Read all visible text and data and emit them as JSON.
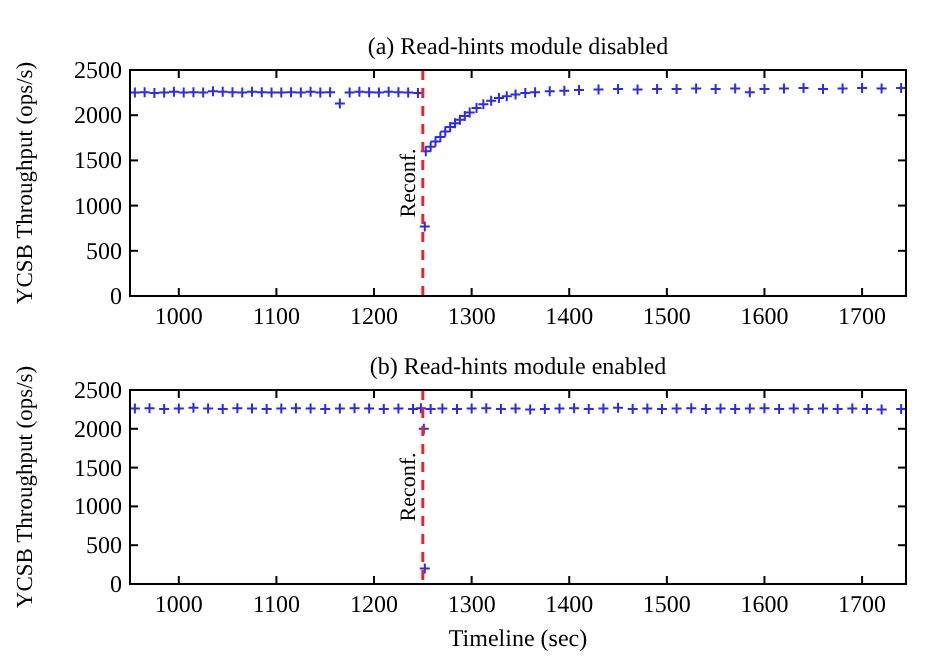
{
  "chart_data": [
    {
      "type": "scatter",
      "title": "(a) Read-hints module disabled",
      "ylabel": "YCSB Throughput (ops/s)",
      "marker": "cross",
      "grid": false,
      "xlim": [
        950,
        1745
      ],
      "ylim": [
        0,
        2500
      ],
      "xticks": [
        1000,
        1100,
        1200,
        1300,
        1400,
        1500,
        1600,
        1700
      ],
      "yticks": [
        0,
        500,
        1000,
        1500,
        2000,
        2500
      ],
      "ref_lines": [
        {
          "axis": "x",
          "value": 1250,
          "label": "Reconf.",
          "color": "#e8262a",
          "line_style": "dashed"
        }
      ],
      "series": [
        {
          "color": "#2b2bf0",
          "x": [
            955,
            965,
            975,
            985,
            995,
            1005,
            1015,
            1025,
            1035,
            1045,
            1055,
            1065,
            1075,
            1085,
            1095,
            1105,
            1115,
            1125,
            1135,
            1145,
            1155,
            1165,
            1175,
            1185,
            1195,
            1205,
            1215,
            1225,
            1235,
            1245,
            1252,
            1253,
            1258,
            1263,
            1268,
            1273,
            1278,
            1283,
            1288,
            1293,
            1298,
            1305,
            1312,
            1320,
            1328,
            1336,
            1345,
            1355,
            1365,
            1380,
            1395,
            1410,
            1430,
            1450,
            1470,
            1490,
            1510,
            1530,
            1550,
            1570,
            1585,
            1600,
            1620,
            1640,
            1660,
            1680,
            1700,
            1720,
            1740
          ],
          "values": [
            2250,
            2255,
            2245,
            2250,
            2260,
            2250,
            2255,
            2250,
            2265,
            2260,
            2255,
            2250,
            2260,
            2255,
            2250,
            2250,
            2255,
            2250,
            2260,
            2250,
            2255,
            2130,
            2250,
            2260,
            2255,
            2250,
            2260,
            2255,
            2250,
            2245,
            770,
            1600,
            1650,
            1710,
            1760,
            1820,
            1870,
            1910,
            1950,
            1990,
            2030,
            2080,
            2120,
            2160,
            2190,
            2210,
            2230,
            2245,
            2255,
            2265,
            2270,
            2280,
            2285,
            2290,
            2285,
            2290,
            2290,
            2295,
            2290,
            2295,
            2255,
            2290,
            2295,
            2300,
            2290,
            2295,
            2300,
            2295,
            2300
          ]
        }
      ]
    },
    {
      "type": "scatter",
      "title": "(b) Read-hints module enabled",
      "xlabel": "Timeline (sec)",
      "ylabel": "YCSB Throughput (ops/s)",
      "marker": "cross",
      "grid": false,
      "xlim": [
        950,
        1745
      ],
      "ylim": [
        0,
        2500
      ],
      "xticks": [
        1000,
        1100,
        1200,
        1300,
        1400,
        1500,
        1600,
        1700
      ],
      "yticks": [
        0,
        500,
        1000,
        1500,
        2000,
        2500
      ],
      "ref_lines": [
        {
          "axis": "x",
          "value": 1250,
          "label": "Reconf.",
          "color": "#e8262a",
          "line_style": "dashed"
        }
      ],
      "series": [
        {
          "color": "#2b2bf0",
          "x": [
            955,
            970,
            985,
            1000,
            1015,
            1030,
            1045,
            1060,
            1075,
            1090,
            1105,
            1120,
            1135,
            1150,
            1165,
            1180,
            1195,
            1210,
            1225,
            1240,
            1248,
            1251,
            1252,
            1258,
            1270,
            1285,
            1300,
            1315,
            1330,
            1345,
            1360,
            1375,
            1390,
            1405,
            1420,
            1435,
            1450,
            1465,
            1480,
            1495,
            1510,
            1525,
            1540,
            1555,
            1570,
            1585,
            1600,
            1615,
            1630,
            1645,
            1660,
            1675,
            1690,
            1705,
            1720,
            1740
          ],
          "values": [
            2260,
            2265,
            2255,
            2260,
            2270,
            2260,
            2255,
            2265,
            2260,
            2255,
            2260,
            2265,
            2260,
            2255,
            2260,
            2265,
            2260,
            2255,
            2260,
            2255,
            2265,
            2000,
            200,
            2255,
            2260,
            2255,
            2260,
            2265,
            2255,
            2260,
            2250,
            2255,
            2260,
            2265,
            2255,
            2260,
            2270,
            2255,
            2260,
            2255,
            2260,
            2265,
            2255,
            2260,
            2255,
            2260,
            2265,
            2255,
            2260,
            2255,
            2260,
            2255,
            2260,
            2255,
            2250,
            2255
          ]
        }
      ]
    }
  ]
}
